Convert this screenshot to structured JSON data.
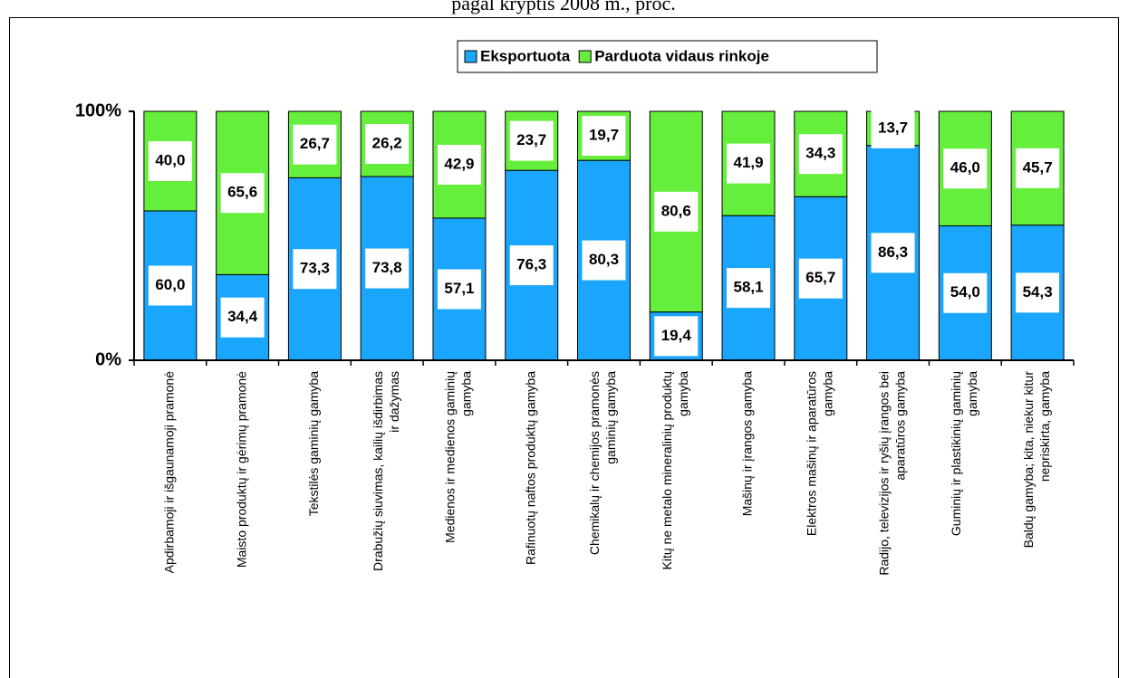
{
  "chart_data": {
    "type": "stacked_bar_100",
    "title": "pagal kryptis 2008 m., proc.",
    "categories": [
      [
        "Apdirbamoji ir išgaunamoji pramonė"
      ],
      [
        "Maisto produktų ir gėrimų pramonė"
      ],
      [
        "Tekstilės gaminių gamyba"
      ],
      [
        "Drabužių siuvimas, kailių išdirbimas",
        "ir dažymas"
      ],
      [
        "Medienos ir medienos gaminių",
        "gamyba"
      ],
      [
        "Rafinuotų naftos produktų gamyba"
      ],
      [
        "Chemikalų ir chemijos pramonės",
        "gaminių gamyba"
      ],
      [
        "Kitų ne metalo mineralinių produktų",
        "gamyba"
      ],
      [
        "Mašinų ir įrangos gamyba"
      ],
      [
        "Elektros mašinų ir aparatūros",
        "gamyba"
      ],
      [
        "Radijo, televizijos ir ryšių įrangos bei",
        "aparatūros gamyba"
      ],
      [
        "Guminių ir plastikinių gaminių",
        "gamyba"
      ],
      [
        "Baldų gamyba; kita, niekur kitur",
        "nepriskirta, gamyba"
      ]
    ],
    "series": [
      {
        "name": "Eksportuota",
        "color": "#1aa6fc",
        "values": [
          60.0,
          34.4,
          73.3,
          73.8,
          57.1,
          76.3,
          80.3,
          19.4,
          58.1,
          65.7,
          86.3,
          54.0,
          54.3
        ],
        "value_labels": [
          "60,0",
          "34,4",
          "73,3",
          "73,8",
          "57,1",
          "76,3",
          "80,3",
          "19,4",
          "58,1",
          "65,7",
          "86,3",
          "54,0",
          "54,3"
        ]
      },
      {
        "name": "Parduota vidaus rinkoje",
        "color": "#66ee3c",
        "values": [
          40.0,
          65.6,
          26.7,
          26.2,
          42.9,
          23.7,
          19.7,
          80.6,
          41.9,
          34.3,
          13.7,
          46.0,
          45.7
        ],
        "value_labels": [
          "40,0",
          "65,6",
          "26,7",
          "26,2",
          "42,9",
          "23,7",
          "19,7",
          "80,6",
          "41,9",
          "34,3",
          "13,7",
          "46,0",
          "45,7"
        ]
      }
    ],
    "ylim": [
      0,
      100
    ],
    "yticks": [
      {
        "value": 0,
        "label": "0%"
      },
      {
        "value": 100,
        "label": "100%"
      }
    ],
    "legend": "top"
  }
}
